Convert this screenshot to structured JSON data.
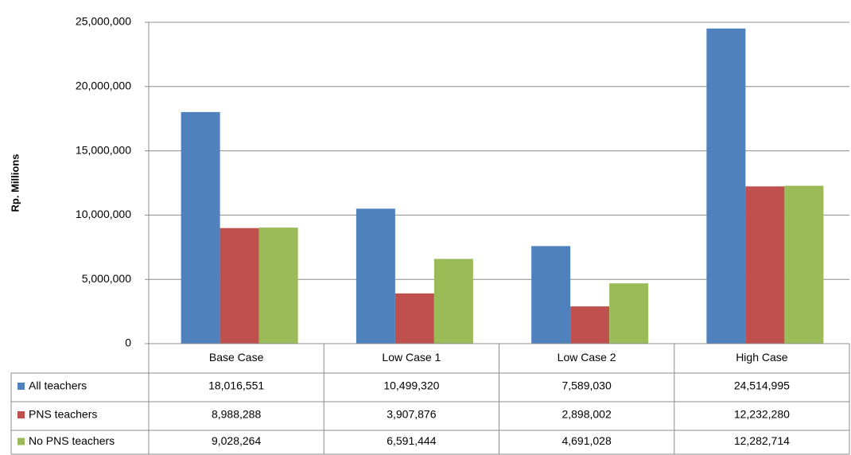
{
  "chart_data": {
    "type": "bar",
    "y_axis_label": "Rp. Millions",
    "categories": [
      "Base Case",
      "Low Case 1",
      "Low Case 2",
      "High Case"
    ],
    "series": [
      {
        "name": "All teachers",
        "color": "#4f81bd",
        "values": [
          18016551,
          10499320,
          7589030,
          24514995
        ],
        "value_labels": [
          "18,016,551",
          "10,499,320",
          "7,589,030",
          "24,514,995"
        ]
      },
      {
        "name": "PNS teachers",
        "color": "#c0504d",
        "values": [
          8988288,
          3907876,
          2898002,
          12232280
        ],
        "value_labels": [
          "8,988,288",
          "3,907,876",
          "2,898,002",
          "12,232,280"
        ]
      },
      {
        "name": "No PNS teachers",
        "color": "#9bbb59",
        "values": [
          9028264,
          6591444,
          4691028,
          12282714
        ],
        "value_labels": [
          "9,028,264",
          "6,591,444",
          "4,691,028",
          "12,282,714"
        ]
      }
    ],
    "ylim": [
      0,
      25000000
    ],
    "yticks": [
      0,
      {
        "value": 5000000,
        "label": "5,000,000"
      },
      {
        "value": 10000000,
        "label": "10,000,000"
      },
      {
        "value": 15000000,
        "label": "15,000,000"
      },
      {
        "value": 20000000,
        "label": "20,000,000"
      },
      {
        "value": 25000000,
        "label": "25,000,000"
      }
    ],
    "grid": true
  }
}
